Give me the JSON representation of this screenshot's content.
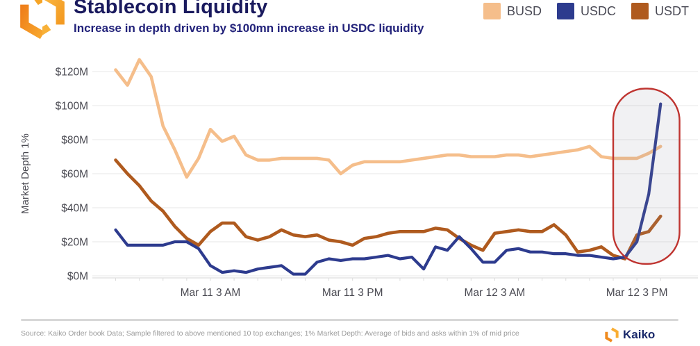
{
  "header": {
    "title": "Stablecoin Liquidity",
    "subtitle": "Increase in depth driven by $100mn increase in USDC liquidity"
  },
  "legend": [
    {
      "label": "BUSD",
      "color": "#F5BE8B"
    },
    {
      "label": "USDC",
      "color": "#2D3B8E"
    },
    {
      "label": "USDT",
      "color": "#AF5A1E"
    }
  ],
  "chart_data": {
    "type": "line",
    "title": "Stablecoin Liquidity",
    "xlabel": "",
    "ylabel": "Market Depth 1%",
    "ylim": [
      0,
      130
    ],
    "grid": "horizontal",
    "legend_position": "top-right",
    "y_axis": {
      "title": "Market Depth 1%",
      "ticks": [
        {
          "label": "$120M",
          "value": 120
        },
        {
          "label": "$100M",
          "value": 100
        },
        {
          "label": "$80M",
          "value": 80
        },
        {
          "label": "$60M",
          "value": 60
        },
        {
          "label": "$40M",
          "value": 40
        },
        {
          "label": "$20M",
          "value": 20
        },
        {
          "label": "$0M",
          "value": 0
        }
      ]
    },
    "x_axis": {
      "unit": "hours",
      "ticks": [
        {
          "label": "Mar 11 3 AM",
          "index": 8
        },
        {
          "label": "Mar 11 3 PM",
          "index": 20
        },
        {
          "label": "Mar 12 3 AM",
          "index": 32
        },
        {
          "label": "Mar 12 3 PM",
          "index": 44
        }
      ]
    },
    "series": [
      {
        "name": "BUSD",
        "color": "#F5BE8B",
        "stroke_width": 4.6,
        "values": [
          121,
          112,
          127,
          117,
          88,
          74,
          58,
          69,
          86,
          79,
          82,
          71,
          68,
          68,
          69,
          69,
          69,
          69,
          68,
          60,
          65,
          67,
          67,
          67,
          67,
          68,
          69,
          70,
          71,
          71,
          70,
          70,
          70,
          71,
          71,
          70,
          71,
          72,
          73,
          74,
          76,
          70,
          69,
          69,
          69,
          72,
          76
        ]
      },
      {
        "name": "USDC",
        "color": "#2D3B8E",
        "stroke_width": 4.2,
        "values": [
          27,
          18,
          18,
          18,
          18,
          20,
          20,
          16,
          6,
          2,
          3,
          2,
          4,
          5,
          6,
          1,
          1,
          8,
          10,
          9,
          10,
          10,
          11,
          12,
          10,
          11,
          4,
          17,
          15,
          23,
          16,
          8,
          8,
          15,
          16,
          14,
          14,
          13,
          13,
          12,
          12,
          11,
          10,
          11,
          20,
          48,
          101
        ]
      },
      {
        "name": "USDT",
        "color": "#AF5A1E",
        "stroke_width": 4.6,
        "values": [
          68,
          60,
          53,
          44,
          38,
          29,
          22,
          18,
          26,
          31,
          31,
          23,
          21,
          23,
          27,
          24,
          23,
          24,
          21,
          20,
          18,
          22,
          23,
          25,
          26,
          26,
          26,
          28,
          27,
          22,
          18,
          15,
          25,
          26,
          27,
          26,
          26,
          30,
          24,
          14,
          15,
          17,
          12,
          10,
          24,
          26,
          35
        ]
      }
    ],
    "draw_order": [
      "BUSD",
      "USDT",
      "USDC"
    ],
    "annotation": {
      "type": "highlight-box",
      "meaning": "USDC liquidity spike",
      "from_index": 42.0,
      "to_index": 47.6,
      "value_top": 110,
      "value_bottom": 7,
      "stroke": "#BF3430",
      "fill": "rgba(148,148,162,0.13)"
    }
  },
  "footer": {
    "source_text": "Source: Kaiko Order book Data; Sample filtered to above mentioned 10 top exchanges; 1% Market Depth: Average of bids and asks within 1% of mid price",
    "brand": "Kaiko"
  }
}
